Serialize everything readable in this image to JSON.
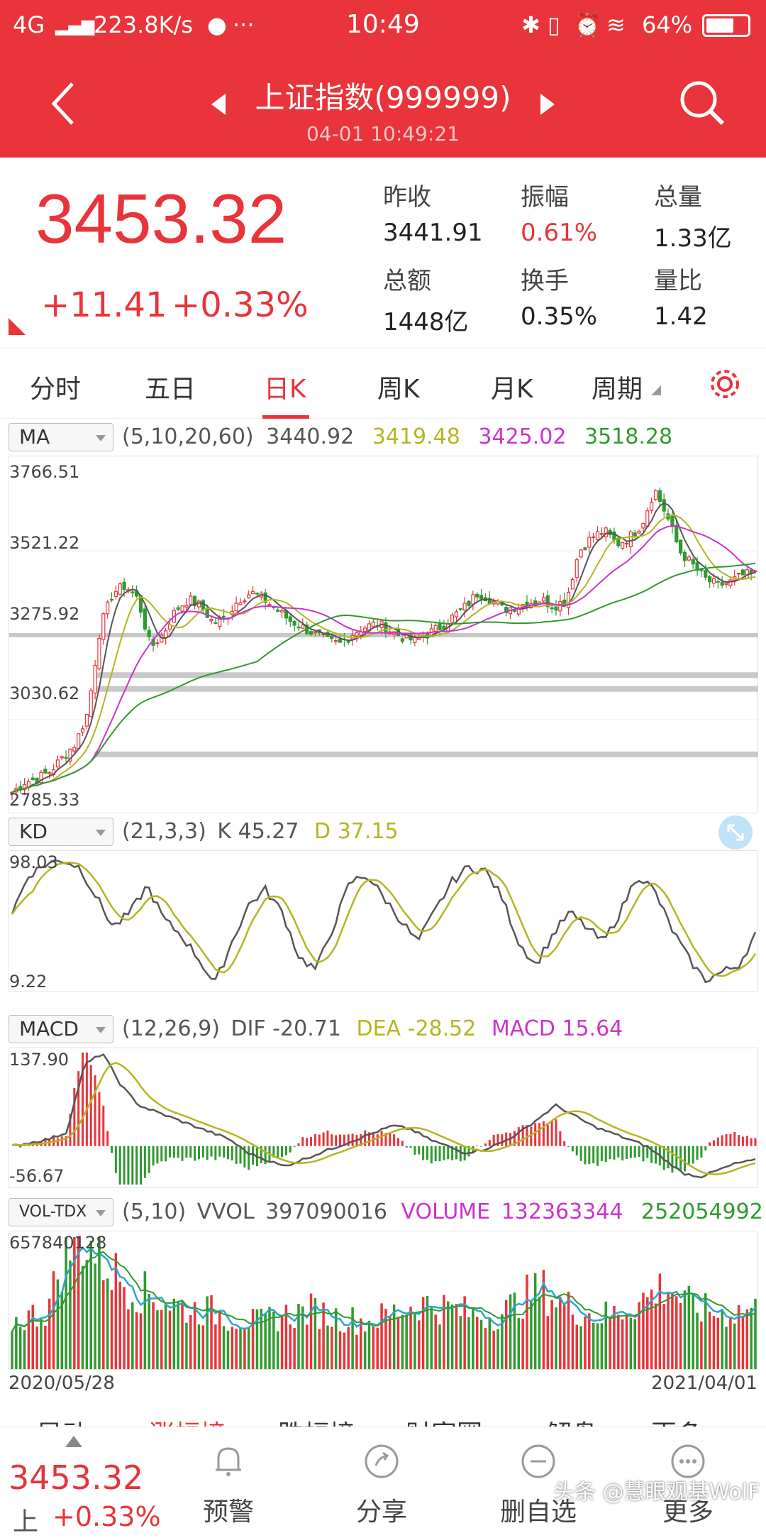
{
  "status_bar": {
    "network": "4G",
    "speed": "223.8K/s",
    "time": "10:49",
    "battery": "64%"
  },
  "header": {
    "title": "上证指数(999999)",
    "datetime": "04-01 10:49:21"
  },
  "quote": {
    "price": "3453.32",
    "change": "+11.41",
    "change_pct": "+0.33%",
    "stats": [
      {
        "label": "昨收",
        "value": "3441.91",
        "color": "#222"
      },
      {
        "label": "振幅",
        "value": "0.61%",
        "color": "#e8343a"
      },
      {
        "label": "总量",
        "value": "1.33亿",
        "color": "#222"
      },
      {
        "label": "总额",
        "value": "1448亿",
        "color": "#222"
      },
      {
        "label": "换手",
        "value": "0.35%",
        "color": "#222"
      },
      {
        "label": "量比",
        "value": "1.42",
        "color": "#222"
      }
    ]
  },
  "tabs": [
    {
      "label": "分时"
    },
    {
      "label": "五日"
    },
    {
      "label": "日K",
      "active": true
    },
    {
      "label": "周K"
    },
    {
      "label": "月K"
    },
    {
      "label": "周期"
    }
  ],
  "ma": {
    "name": "MA",
    "params": "(5,10,20,60)",
    "v1": "3440.92",
    "v2": "3419.48",
    "v3": "3425.02",
    "v4": "3518.28"
  },
  "kd": {
    "name": "KD",
    "params": "(21,3,3)",
    "k_label": "K",
    "k": "45.27",
    "d_label": "D",
    "d": "37.15"
  },
  "macd": {
    "name": "MACD",
    "params": "(12,26,9)",
    "dif_label": "DIF",
    "dif": "-20.71",
    "dea_label": "DEA",
    "dea": "-28.52",
    "macd_label": "MACD",
    "macd": "15.64"
  },
  "vol": {
    "name": "VOL-TDX",
    "params": "(5,10)",
    "vvol_label": "VVOL",
    "vvol": "397090016",
    "volume_label": "VOLUME",
    "volume": "132363344",
    "v3": "252054992"
  },
  "chart_data": [
    {
      "type": "candlestick",
      "title": "MA",
      "ylim": [
        2785.33,
        3766.51
      ],
      "y_ticks": [
        "3766.51",
        "3521.22",
        "3275.92",
        "3030.62",
        "2785.33"
      ],
      "x_start": "2020/05/28",
      "x_end": "2021/04/01",
      "series": [
        {
          "name": "MA5"
        },
        {
          "name": "MA10"
        },
        {
          "name": "MA20"
        },
        {
          "name": "MA60"
        }
      ],
      "close_anchors": [
        2820,
        2850,
        2860,
        2880,
        2920,
        2960,
        3050,
        3300,
        3400,
        3420,
        3380,
        3240,
        3280,
        3350,
        3380,
        3360,
        3310,
        3330,
        3380,
        3400,
        3380,
        3350,
        3320,
        3300,
        3280,
        3260,
        3250,
        3280,
        3300,
        3310,
        3290,
        3270,
        3260,
        3280,
        3300,
        3330,
        3360,
        3400,
        3380,
        3350,
        3360,
        3370,
        3380,
        3360,
        3380,
        3520,
        3560,
        3580,
        3540,
        3560,
        3600,
        3700,
        3620,
        3520,
        3480,
        3440,
        3420,
        3430,
        3450,
        3453
      ],
      "hlines": [
        3275.92,
        3160,
        3120,
        2930
      ]
    },
    {
      "type": "line",
      "title": "KD",
      "ylim": [
        9.22,
        98.03
      ],
      "y_ticks": [
        "98.03",
        "9.22"
      ],
      "series": [
        {
          "name": "K"
        },
        {
          "name": "D"
        }
      ],
      "k_anchors": [
        60,
        85,
        92,
        95,
        90,
        70,
        50,
        60,
        78,
        55,
        45,
        30,
        12,
        40,
        65,
        75,
        60,
        30,
        22,
        50,
        80,
        85,
        70,
        55,
        40,
        60,
        80,
        90,
        88,
        70,
        40,
        25,
        45,
        60,
        50,
        40,
        60,
        85,
        75,
        50,
        30,
        15,
        20,
        25,
        45
      ]
    },
    {
      "type": "bar",
      "title": "MACD",
      "ylim": [
        -56.67,
        137.9
      ],
      "y_ticks": [
        "137.90",
        "-56.67"
      ],
      "series": [
        {
          "name": "DIF"
        },
        {
          "name": "DEA"
        },
        {
          "name": "MACD"
        }
      ],
      "dif_anchors": [
        0,
        5,
        10,
        20,
        120,
        137,
        90,
        60,
        50,
        40,
        30,
        20,
        10,
        -10,
        -20,
        -30,
        -20,
        -10,
        0,
        10,
        20,
        30,
        25,
        10,
        0,
        -10,
        -5,
        5,
        20,
        40,
        60,
        45,
        30,
        20,
        10,
        0,
        -20,
        -40,
        -45,
        -35,
        -25,
        -21
      ]
    },
    {
      "type": "bar",
      "title": "VOL-TDX",
      "ylim": [
        0,
        657840128
      ],
      "y_ticks": [
        "657840128"
      ],
      "series": [
        {
          "name": "VOLUME"
        },
        {
          "name": "MA5"
        },
        {
          "name": "MA10"
        }
      ],
      "vol_anchors": [
        0.35,
        0.4,
        0.45,
        0.9,
        1.0,
        0.85,
        0.7,
        0.6,
        0.55,
        0.5,
        0.45,
        0.45,
        0.4,
        0.38,
        0.35,
        0.4,
        0.42,
        0.45,
        0.4,
        0.38,
        0.36,
        0.4,
        0.45,
        0.5,
        0.48,
        0.45,
        0.42,
        0.4,
        0.45,
        0.55,
        0.6,
        0.5,
        0.45,
        0.4,
        0.42,
        0.48,
        0.55,
        0.65,
        0.5,
        0.45,
        0.42,
        0.44,
        0.45
      ]
    }
  ],
  "scroll_tabs": [
    "异动",
    "涨幅榜",
    "跌幅榜",
    "财富圈",
    "解盘",
    "更多"
  ],
  "bottom": {
    "price": "3453.32",
    "market": "上",
    "pct": "+0.33%",
    "nav": [
      {
        "label": "预警",
        "icon": "bell-icon"
      },
      {
        "label": "分享",
        "icon": "share-icon"
      },
      {
        "label": "删自选",
        "icon": "minus-circle-icon"
      },
      {
        "label": "更多",
        "icon": "more-icon"
      }
    ]
  },
  "watermark": "头条 @慧眼观基WolF"
}
